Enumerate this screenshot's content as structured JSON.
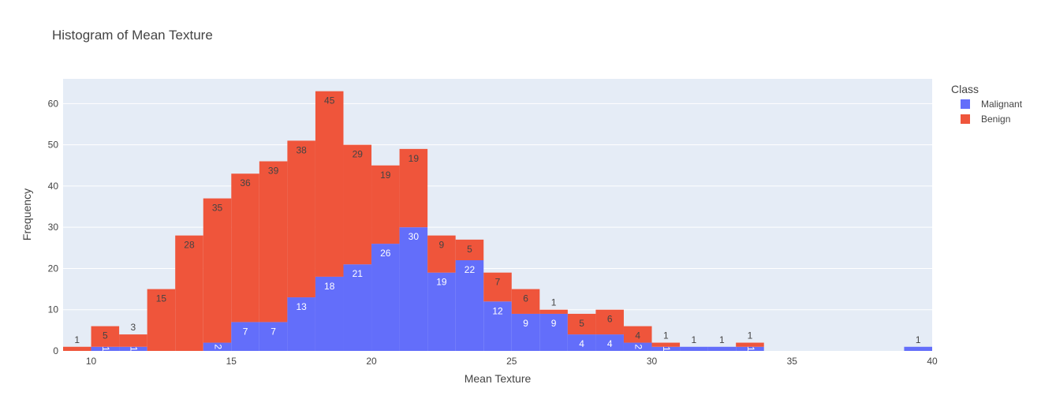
{
  "chart_data": {
    "type": "bar",
    "barmode": "stack",
    "title": "Histogram of Mean Texture",
    "xlabel": "Mean Texture",
    "ylabel": "Frequency",
    "xlim": [
      9,
      40
    ],
    "ylim": [
      0,
      66
    ],
    "xticks": [
      10,
      15,
      20,
      25,
      30,
      35,
      40
    ],
    "yticks": [
      0,
      10,
      20,
      30,
      40,
      50,
      60
    ],
    "grid": true,
    "legend": {
      "title": "Class",
      "position": "top-right",
      "entries": [
        "Malignant",
        "Benign"
      ]
    },
    "bin_width": 1,
    "bin_starts": [
      9,
      10,
      11,
      12,
      13,
      14,
      15,
      16,
      17,
      18,
      19,
      20,
      21,
      22,
      23,
      24,
      25,
      26,
      27,
      28,
      29,
      30,
      31,
      32,
      33,
      34,
      35,
      36,
      37,
      38,
      39
    ],
    "series": [
      {
        "name": "Malignant",
        "color": "#636efa",
        "values": [
          0,
          1,
          1,
          0,
          0,
          2,
          7,
          7,
          13,
          18,
          21,
          26,
          30,
          19,
          22,
          12,
          9,
          9,
          4,
          4,
          2,
          1,
          1,
          1,
          1,
          0,
          0,
          0,
          0,
          0,
          1
        ]
      },
      {
        "name": "Benign",
        "color": "#ef553b",
        "values": [
          1,
          5,
          3,
          15,
          28,
          35,
          36,
          39,
          38,
          45,
          29,
          19,
          19,
          9,
          5,
          7,
          6,
          1,
          5,
          6,
          4,
          1,
          0,
          0,
          1,
          0,
          0,
          0,
          0,
          0,
          0
        ]
      }
    ]
  }
}
